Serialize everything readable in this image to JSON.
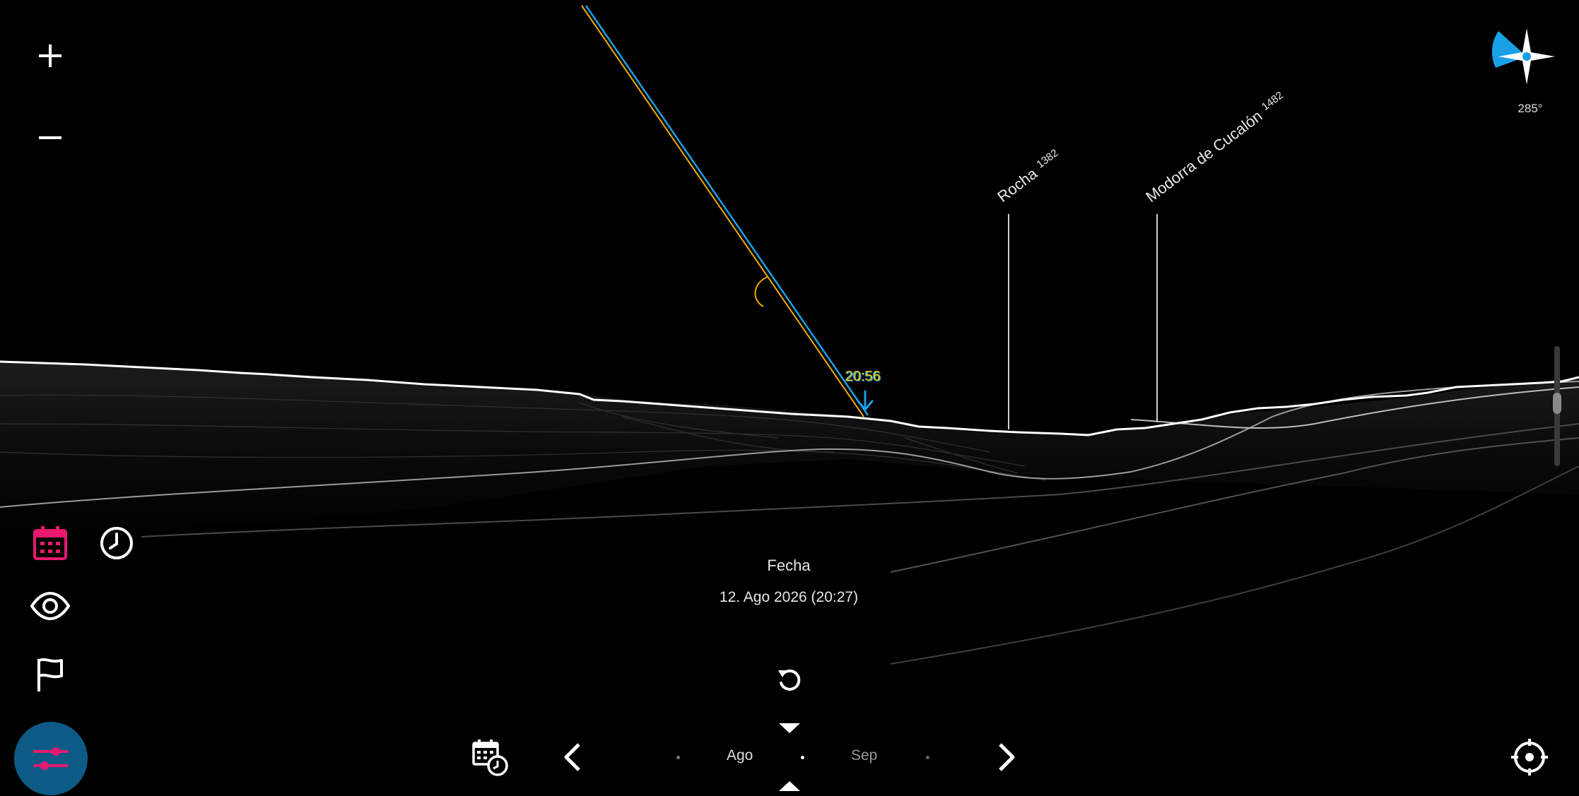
{
  "colors": {
    "background": "#000000",
    "accent_magenta": "#e8196f",
    "accent_blue": "#1aa0e6",
    "sun_orange": "#f2a900",
    "settings_button_bg": "#0d5a86",
    "terrain_line": "#ffffff"
  },
  "toolbar": {
    "zoom_in_icon": "plus-icon",
    "zoom_out_icon": "minus-icon",
    "calendar_icon": "calendar-icon",
    "clock_icon": "clock-icon",
    "visibility_icon": "eye-icon",
    "flag_icon": "flag-icon",
    "settings_icon": "sliders-icon"
  },
  "compass": {
    "heading": "285°",
    "icon": "compass-rose-icon"
  },
  "peaks": [
    {
      "name": "Rocha",
      "elevation": "1382"
    },
    {
      "name": "Modorra de Cucalón",
      "elevation": "1482"
    }
  ],
  "sun_path": {
    "time_label": "20:56",
    "marker_icon": "sunset-arrow-icon",
    "body_icon": "sun-crescent-icon"
  },
  "date_panel": {
    "title": "Fecha",
    "value": "12. Ago 2026 (20:27)",
    "reset_icon": "reset-icon"
  },
  "timeline": {
    "months": [
      {
        "label": "Ago",
        "selected": true
      },
      {
        "label": "Sep",
        "selected": false
      }
    ],
    "prev_icon": "chevron-left-icon",
    "next_icon": "chevron-right-icon",
    "calendar_clock_icon": "calendar-clock-icon",
    "marker_down_icon": "triangle-down-icon",
    "marker_up_icon": "triangle-up-icon"
  },
  "locate_icon": "crosshair-icon"
}
